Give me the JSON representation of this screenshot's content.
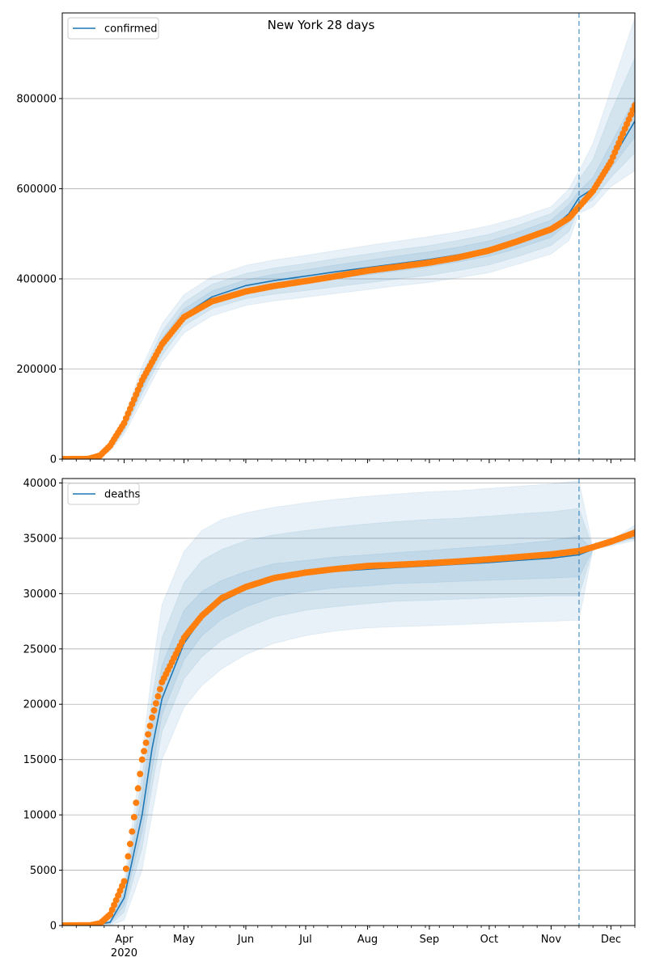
{
  "figure": {
    "title": "New York 28 days"
  },
  "chart_data": [
    {
      "type": "line",
      "legend": [
        "confirmed"
      ],
      "legend_location": "top-left",
      "x_axis_type": "date",
      "xlim": [
        "2020-03-01",
        "2020-12-13"
      ],
      "ylim": [
        0,
        990000
      ],
      "yticks": [
        0,
        200000,
        400000,
        600000,
        800000
      ],
      "ytick_labels": [
        "0",
        "200000",
        "400000",
        "600000",
        "800000"
      ],
      "grid": "y",
      "forecast_start": "2020-11-15",
      "model": {
        "x": [
          "2020-03-01",
          "2020-03-10",
          "2020-03-15",
          "2020-03-20",
          "2020-03-25",
          "2020-04-01",
          "2020-04-10",
          "2020-04-20",
          "2020-05-01",
          "2020-05-15",
          "2020-06-01",
          "2020-06-15",
          "2020-07-01",
          "2020-07-15",
          "2020-08-01",
          "2020-08-15",
          "2020-09-01",
          "2020-09-15",
          "2020-10-01",
          "2020-10-15",
          "2020-11-01",
          "2020-11-10",
          "2020-11-15",
          "2020-11-22",
          "2020-12-01",
          "2020-12-13"
        ],
        "y": [
          0,
          0,
          1000,
          8000,
          25000,
          72000,
          165000,
          255000,
          320000,
          360000,
          385000,
          396000,
          406000,
          415000,
          425000,
          433000,
          443000,
          453000,
          467000,
          485000,
          510000,
          545000,
          580000,
          600000,
          660000,
          750000
        ]
      },
      "bands": [
        {
          "name": "95%",
          "lower": [
            0,
            0,
            500,
            5000,
            18000,
            55000,
            130000,
            215000,
            280000,
            318000,
            341000,
            351000,
            359000,
            367000,
            376000,
            384000,
            392000,
            402000,
            414000,
            432000,
            455000,
            485000,
            545000,
            560000,
            605000,
            640000
          ],
          "upper": [
            0,
            0,
            2000,
            11000,
            35000,
            92000,
            205000,
            300000,
            365000,
            405000,
            430000,
            442000,
            452000,
            462000,
            474000,
            483000,
            494000,
            504000,
            518000,
            535000,
            560000,
            600000,
            640000,
            700000,
            820000,
            980000
          ]
        },
        {
          "name": "80%",
          "lower": [
            0,
            0,
            700,
            6000,
            21000,
            62000,
            145000,
            230000,
            296000,
            334000,
            356000,
            366000,
            374000,
            382000,
            391000,
            399000,
            408000,
            418000,
            431000,
            449000,
            474000,
            505000,
            560000,
            575000,
            625000,
            680000
          ],
          "upper": [
            0,
            0,
            1500,
            10000,
            31000,
            84000,
            188000,
            283000,
            348000,
            388000,
            412000,
            424000,
            434000,
            444000,
            455000,
            464000,
            474000,
            485000,
            499000,
            518000,
            545000,
            580000,
            620000,
            665000,
            770000,
            890000
          ]
        },
        {
          "name": "50%",
          "lower": [
            0,
            0,
            850,
            7000,
            23000,
            67000,
            155000,
            243000,
            309000,
            348000,
            371000,
            382000,
            391000,
            400000,
            409000,
            417000,
            427000,
            437000,
            450000,
            467000,
            492000,
            525000,
            570000,
            588000,
            645000,
            715000
          ],
          "upper": [
            0,
            0,
            1200,
            9000,
            28000,
            78000,
            177000,
            268000,
            333000,
            373000,
            398000,
            410000,
            420000,
            430000,
            441000,
            450000,
            460000,
            470000,
            484000,
            503000,
            530000,
            565000,
            595000,
            625000,
            700000,
            800000
          ]
        }
      ],
      "observed": {
        "x_start": "2020-03-01",
        "x_end": "2020-12-13",
        "anchors": [
          [
            "2020-03-01",
            0
          ],
          [
            "2020-03-14",
            300
          ],
          [
            "2020-03-20",
            8000
          ],
          [
            "2020-03-25",
            30000
          ],
          [
            "2020-04-01",
            80000
          ],
          [
            "2020-04-10",
            175000
          ],
          [
            "2020-04-20",
            255000
          ],
          [
            "2020-05-01",
            315000
          ],
          [
            "2020-05-15",
            350000
          ],
          [
            "2020-06-01",
            372000
          ],
          [
            "2020-06-15",
            384000
          ],
          [
            "2020-07-01",
            395000
          ],
          [
            "2020-07-15",
            405000
          ],
          [
            "2020-08-01",
            418000
          ],
          [
            "2020-08-15",
            426000
          ],
          [
            "2020-09-01",
            436000
          ],
          [
            "2020-09-15",
            447000
          ],
          [
            "2020-10-01",
            463000
          ],
          [
            "2020-10-15",
            483000
          ],
          [
            "2020-11-01",
            510000
          ],
          [
            "2020-11-10",
            535000
          ],
          [
            "2020-11-15",
            560000
          ],
          [
            "2020-11-22",
            595000
          ],
          [
            "2020-12-01",
            660000
          ],
          [
            "2020-12-13",
            785000
          ]
        ]
      }
    },
    {
      "type": "line",
      "legend": [
        "deaths"
      ],
      "legend_location": "top-left",
      "x_axis_type": "date",
      "xlim": [
        "2020-03-01",
        "2020-12-13"
      ],
      "ylim": [
        0,
        40400
      ],
      "yticks": [
        0,
        5000,
        10000,
        15000,
        20000,
        25000,
        30000,
        35000,
        40000
      ],
      "ytick_labels": [
        "0",
        "5000",
        "10000",
        "15000",
        "20000",
        "25000",
        "30000",
        "35000",
        "40000"
      ],
      "xticks": [
        "2020-04-01",
        "2020-05-01",
        "2020-06-01",
        "2020-07-01",
        "2020-08-01",
        "2020-09-01",
        "2020-10-01",
        "2020-11-01",
        "2020-12-01"
      ],
      "xtick_labels": [
        "Apr",
        "May",
        "Jun",
        "Jul",
        "Aug",
        "Sep",
        "Oct",
        "Nov",
        "Dec"
      ],
      "xtick_year_label": "2020",
      "grid": "y",
      "forecast_start": "2020-11-15",
      "model": {
        "x": [
          "2020-03-01",
          "2020-03-15",
          "2020-03-25",
          "2020-04-01",
          "2020-04-10",
          "2020-04-15",
          "2020-04-20",
          "2020-05-01",
          "2020-05-10",
          "2020-05-20",
          "2020-06-01",
          "2020-06-15",
          "2020-07-01",
          "2020-07-15",
          "2020-08-01",
          "2020-08-15",
          "2020-09-01",
          "2020-09-15",
          "2020-10-01",
          "2020-10-15",
          "2020-11-01",
          "2020-11-15",
          "2020-11-22",
          "2020-12-01",
          "2020-12-13"
        ],
        "y": [
          0,
          0,
          300,
          2500,
          10000,
          16000,
          20500,
          25500,
          27800,
          29300,
          30400,
          31200,
          31700,
          32000,
          32200,
          32350,
          32500,
          32650,
          32800,
          33000,
          33200,
          33500,
          34000,
          34600,
          35400
        ]
      },
      "bands": [
        {
          "name": "95%",
          "lower": [
            0,
            0,
            0,
            500,
            5000,
            10000,
            15000,
            19700,
            21700,
            23200,
            24500,
            25500,
            26200,
            26600,
            26900,
            27000,
            27100,
            27200,
            27300,
            27400,
            27500,
            27600,
            34000,
            34300,
            34800
          ],
          "upper": [
            0,
            0,
            600,
            4000,
            15500,
            23000,
            29000,
            33800,
            35700,
            36700,
            37300,
            37800,
            38200,
            38500,
            38800,
            39000,
            39200,
            39300,
            39500,
            39700,
            39900,
            40200,
            34100,
            34800,
            36200
          ]
        },
        {
          "name": "80%",
          "lower": [
            0,
            0,
            100,
            1200,
            7000,
            12500,
            17500,
            22300,
            24300,
            25800,
            26900,
            27900,
            28500,
            28800,
            29100,
            29300,
            29400,
            29500,
            29600,
            29700,
            29800,
            29800,
            34000,
            34400,
            35000
          ],
          "upper": [
            0,
            0,
            450,
            3300,
            13500,
            20500,
            26000,
            31000,
            33000,
            34000,
            34800,
            35300,
            35700,
            36000,
            36300,
            36500,
            36700,
            36800,
            37000,
            37200,
            37400,
            37700,
            34050,
            34700,
            35900
          ]
        },
        {
          "name": "50%",
          "lower": [
            0,
            0,
            200,
            1800,
            8500,
            14000,
            19000,
            24000,
            26200,
            27700,
            28800,
            29700,
            30200,
            30500,
            30700,
            30900,
            31000,
            31100,
            31200,
            31300,
            31400,
            31500,
            34000,
            34500,
            35100
          ],
          "upper": [
            0,
            0,
            380,
            3000,
            12000,
            18500,
            23500,
            28500,
            30200,
            31200,
            32000,
            32700,
            33000,
            33300,
            33500,
            33700,
            33900,
            34100,
            34300,
            34500,
            34800,
            35200,
            34000,
            34650,
            35700
          ]
        }
      ],
      "observed": {
        "x_start": "2020-03-01",
        "x_end": "2020-12-13",
        "anchors": [
          [
            "2020-03-01",
            0
          ],
          [
            "2020-03-15",
            20
          ],
          [
            "2020-03-20",
            200
          ],
          [
            "2020-03-25",
            1000
          ],
          [
            "2020-04-01",
            4000
          ],
          [
            "2020-04-05",
            8500
          ],
          [
            "2020-04-10",
            15000
          ],
          [
            "2020-04-15",
            18800
          ],
          [
            "2020-04-20",
            22000
          ],
          [
            "2020-05-01",
            26000
          ],
          [
            "2020-05-10",
            28000
          ],
          [
            "2020-05-20",
            29600
          ],
          [
            "2020-06-01",
            30600
          ],
          [
            "2020-06-15",
            31400
          ],
          [
            "2020-07-01",
            31900
          ],
          [
            "2020-07-15",
            32200
          ],
          [
            "2020-08-01",
            32500
          ],
          [
            "2020-08-15",
            32600
          ],
          [
            "2020-09-01",
            32750
          ],
          [
            "2020-09-15",
            32900
          ],
          [
            "2020-10-01",
            33100
          ],
          [
            "2020-10-15",
            33300
          ],
          [
            "2020-11-01",
            33550
          ],
          [
            "2020-11-15",
            33850
          ],
          [
            "2020-11-22",
            34200
          ],
          [
            "2020-12-01",
            34700
          ],
          [
            "2020-12-13",
            35500
          ]
        ]
      }
    }
  ],
  "colors": {
    "model_line": "#1f77b4",
    "band_fill": "#1f77b4",
    "observed": "#ff7f0e",
    "forecast_line": "#1f77b4",
    "grid": "#b0b0b0"
  }
}
